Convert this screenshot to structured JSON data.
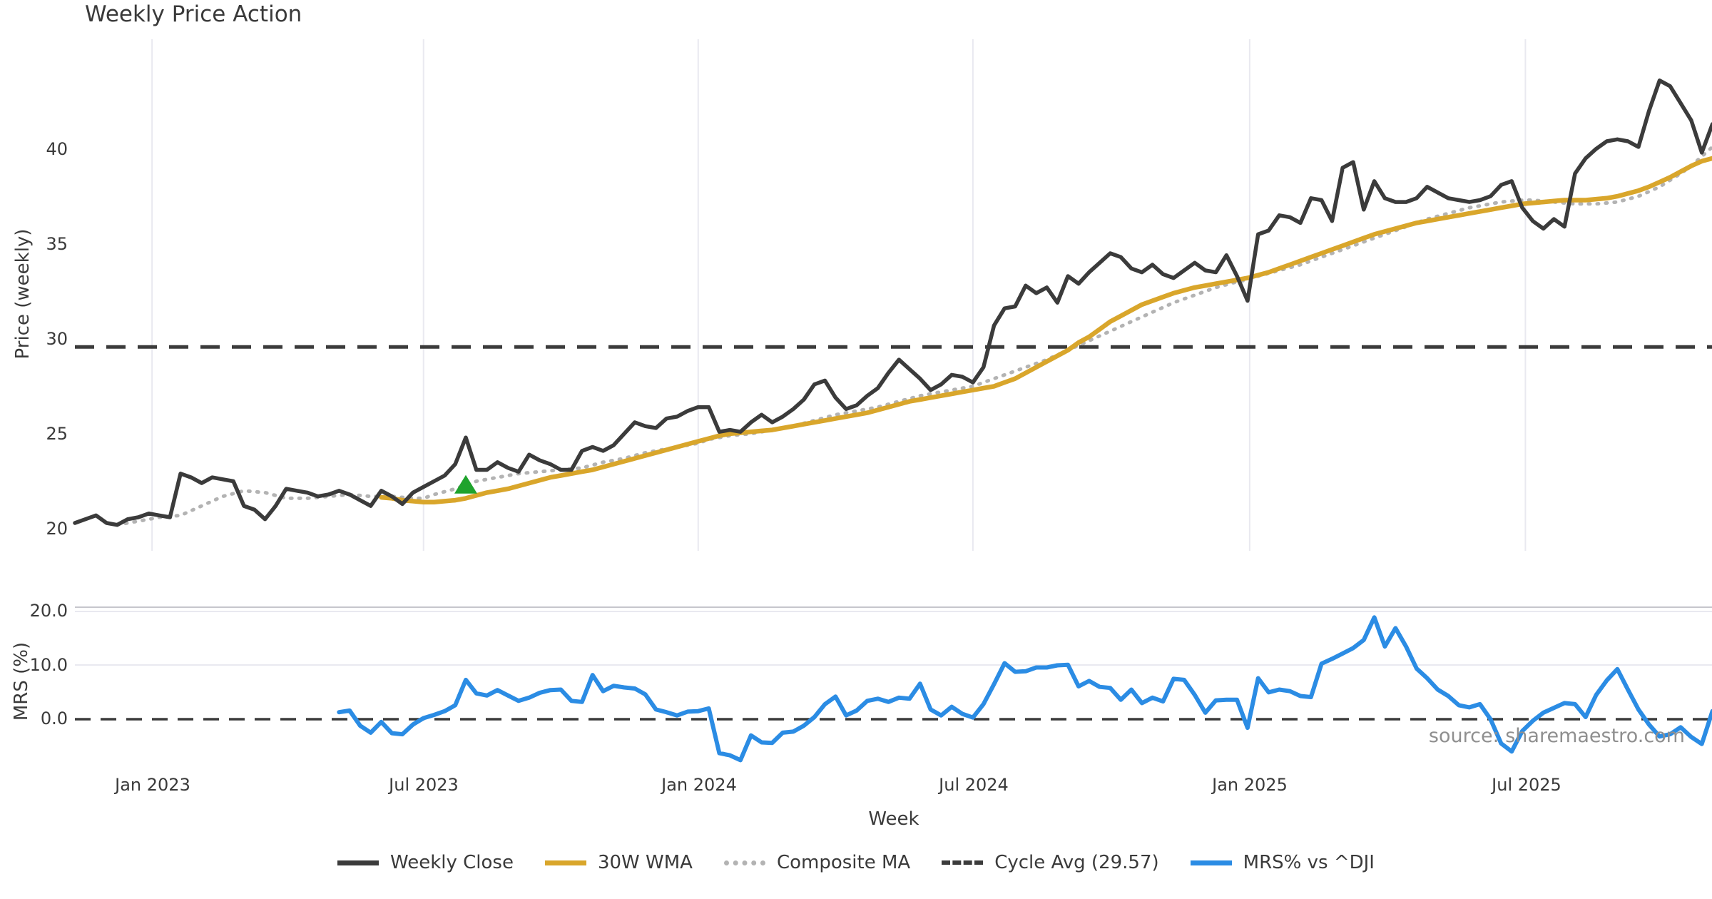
{
  "title": "Weekly Price Action",
  "source_note": "source: sharemaestro.com",
  "colors": {
    "weekly_close": "#3b3b3b",
    "wma_30w": "#d9a62b",
    "composite_ma": "#b3b3b3",
    "cycle_avg": "#3b3b3b",
    "mrs": "#2b8ce4",
    "buy_marker": "#1fa32d",
    "gridline": "#e9e9f0",
    "panel_spine": "#c6c6cc",
    "text": "#3a3a3a",
    "muted_text": "#8f8f8f"
  },
  "top_panel": {
    "ylabel": "Price (weekly)",
    "yticks": [
      {
        "label": "40",
        "value": 40
      },
      {
        "label": "35",
        "value": 35
      },
      {
        "label": "30",
        "value": 30
      },
      {
        "label": "25",
        "value": 25
      },
      {
        "label": "20",
        "value": 20
      }
    ],
    "cycle_avg_value": 29.57
  },
  "bottom_panel": {
    "ylabel": "MRS (%)",
    "yticks": [
      {
        "label": "20.0",
        "value": 20
      },
      {
        "label": "10.0",
        "value": 10
      },
      {
        "label": "0.0",
        "value": 0
      }
    ],
    "zero_line": 0
  },
  "x_axis": {
    "label": "Week",
    "ticks": [
      {
        "label": "Jan 2023",
        "week_index": 7.3
      },
      {
        "label": "Jul 2023",
        "week_index": 33.0
      },
      {
        "label": "Jan 2024",
        "week_index": 59.0
      },
      {
        "label": "Jul 2024",
        "week_index": 85.0
      },
      {
        "label": "Jan 2025",
        "week_index": 111.2
      },
      {
        "label": "Jul 2025",
        "week_index": 137.3
      }
    ]
  },
  "legend": {
    "items": [
      {
        "label": "Weekly Close",
        "style": "solid",
        "color": "#3b3b3b"
      },
      {
        "label": "30W WMA",
        "style": "solid",
        "color": "#d9a62b"
      },
      {
        "label": "Composite MA",
        "style": "dotted",
        "color": "#b3b3b3"
      },
      {
        "label": "Cycle Avg (29.57)",
        "style": "dashed",
        "color": "#3b3b3b"
      },
      {
        "label": "MRS% vs ^DJI",
        "style": "solid",
        "color": "#2b8ce4"
      }
    ]
  },
  "chart_data": [
    {
      "type": "line",
      "panel": "price",
      "title": "Weekly Price Action",
      "xlabel": "Week",
      "ylabel": "Price (weekly)",
      "x_unit": "week_index",
      "ylim": [
        19.3,
        45.8
      ],
      "grid": "vertical-only",
      "cycle_avg": 29.57,
      "buy_signal_marker": {
        "week_index": 37,
        "value": 22.3,
        "shape": "triangle-up",
        "color": "#1fa32d"
      },
      "series": [
        {
          "name": "Weekly Close",
          "start_index": 0,
          "values": [
            20.3,
            20.5,
            20.7,
            20.3,
            20.2,
            20.5,
            20.6,
            20.8,
            20.7,
            20.6,
            22.9,
            22.7,
            22.4,
            22.7,
            22.6,
            22.5,
            21.2,
            21.0,
            20.5,
            21.2,
            22.1,
            22.0,
            21.9,
            21.7,
            21.8,
            22.0,
            21.8,
            21.5,
            21.2,
            22.0,
            21.7,
            21.3,
            21.9,
            22.2,
            22.5,
            22.8,
            23.4,
            24.8,
            23.1,
            23.1,
            23.5,
            23.2,
            23.0,
            23.9,
            23.6,
            23.4,
            23.1,
            23.1,
            24.1,
            24.3,
            24.1,
            24.4,
            25.0,
            25.6,
            25.4,
            25.3,
            25.8,
            25.9,
            26.2,
            26.4,
            26.4,
            25.1,
            25.2,
            25.1,
            25.6,
            26.0,
            25.6,
            25.9,
            26.3,
            26.8,
            27.6,
            27.8,
            26.9,
            26.3,
            26.5,
            27.0,
            27.4,
            28.2,
            28.9,
            28.4,
            27.9,
            27.3,
            27.6,
            28.1,
            28.0,
            27.7,
            28.5,
            30.7,
            31.6,
            31.7,
            32.8,
            32.4,
            32.7,
            31.9,
            33.3,
            32.9,
            33.5,
            34.0,
            34.5,
            34.3,
            33.7,
            33.5,
            33.9,
            33.4,
            33.2,
            33.6,
            34.0,
            33.6,
            33.5,
            34.4,
            33.3,
            32.0,
            35.5,
            35.7,
            36.5,
            36.4,
            36.1,
            37.4,
            37.3,
            36.2,
            39.0,
            39.3,
            36.8,
            38.3,
            37.4,
            37.2,
            37.2,
            37.4,
            38.0,
            37.7,
            37.4,
            37.3,
            37.2,
            37.3,
            37.5,
            38.1,
            38.3,
            36.9,
            36.2,
            35.8,
            36.3,
            35.9,
            38.7,
            39.5,
            40.0,
            40.4,
            40.5,
            40.4,
            40.1,
            42.0,
            43.6,
            43.3,
            42.4,
            41.5,
            39.8,
            41.3
          ]
        },
        {
          "name": "30W WMA",
          "start_index": 29,
          "values": [
            21.65,
            21.6,
            21.5,
            21.45,
            21.4,
            21.4,
            21.45,
            21.5,
            21.6,
            21.75,
            21.9,
            22.0,
            22.1,
            22.25,
            22.4,
            22.55,
            22.7,
            22.8,
            22.9,
            23.0,
            23.1,
            23.25,
            23.4,
            23.55,
            23.7,
            23.85,
            24.0,
            24.15,
            24.3,
            24.45,
            24.6,
            24.75,
            24.9,
            25.0,
            25.05,
            25.1,
            25.15,
            25.2,
            25.3,
            25.4,
            25.5,
            25.6,
            25.7,
            25.8,
            25.9,
            26.0,
            26.1,
            26.25,
            26.4,
            26.55,
            26.7,
            26.8,
            26.9,
            27.0,
            27.1,
            27.2,
            27.3,
            27.4,
            27.5,
            27.7,
            27.9,
            28.2,
            28.5,
            28.8,
            29.1,
            29.4,
            29.8,
            30.1,
            30.5,
            30.9,
            31.2,
            31.5,
            31.8,
            32.0,
            32.2,
            32.4,
            32.55,
            32.7,
            32.8,
            32.9,
            33.0,
            33.1,
            33.2,
            33.35,
            33.5,
            33.7,
            33.9,
            34.1,
            34.3,
            34.5,
            34.7,
            34.9,
            35.1,
            35.3,
            35.5,
            35.65,
            35.8,
            35.95,
            36.1,
            36.2,
            36.3,
            36.4,
            36.5,
            36.6,
            36.7,
            36.8,
            36.9,
            37.0,
            37.1,
            37.15,
            37.2,
            37.25,
            37.3,
            37.3,
            37.3,
            37.35,
            37.4,
            37.5,
            37.65,
            37.8,
            38.0,
            38.25,
            38.5,
            38.8,
            39.1,
            39.35,
            39.5
          ]
        },
        {
          "name": "Composite MA",
          "start_index": 4,
          "values": [
            20.2,
            20.3,
            20.4,
            20.5,
            20.6,
            20.65,
            20.7,
            20.95,
            21.2,
            21.45,
            21.7,
            21.85,
            22.0,
            21.95,
            21.9,
            21.75,
            21.6,
            21.6,
            21.6,
            21.65,
            21.7,
            21.75,
            21.8,
            21.75,
            21.7,
            21.7,
            21.7,
            21.65,
            21.6,
            21.6,
            21.8,
            21.95,
            22.1,
            22.3,
            22.5,
            22.6,
            22.7,
            22.8,
            22.9,
            22.95,
            23.0,
            23.05,
            23.1,
            23.15,
            23.2,
            23.35,
            23.5,
            23.6,
            23.7,
            23.85,
            24.0,
            24.1,
            24.2,
            24.3,
            24.4,
            24.5,
            24.7,
            24.8,
            24.9,
            24.95,
            25.0,
            25.1,
            25.2,
            25.3,
            25.4,
            25.55,
            25.7,
            25.85,
            26.0,
            26.1,
            26.2,
            26.3,
            26.4,
            26.55,
            26.7,
            26.85,
            27.0,
            27.1,
            27.2,
            27.3,
            27.4,
            27.5,
            27.7,
            27.9,
            28.1,
            28.3,
            28.5,
            28.7,
            28.9,
            29.15,
            29.4,
            29.65,
            29.9,
            30.15,
            30.4,
            30.65,
            30.9,
            31.15,
            31.4,
            31.65,
            31.9,
            32.1,
            32.3,
            32.5,
            32.7,
            32.85,
            33.0,
            33.1,
            33.3,
            33.45,
            33.6,
            33.75,
            33.9,
            34.1,
            34.3,
            34.5,
            34.7,
            34.9,
            35.1,
            35.3,
            35.5,
            35.7,
            35.9,
            36.1,
            36.3,
            36.45,
            36.6,
            36.75,
            36.9,
            37.0,
            37.1,
            37.2,
            37.25,
            37.3,
            37.3,
            37.25,
            37.2,
            37.15,
            37.1,
            37.1,
            37.1,
            37.15,
            37.2,
            37.35,
            37.5,
            37.75,
            38.0,
            38.35,
            38.7,
            39.1,
            39.6,
            40.1
          ]
        }
      ]
    },
    {
      "type": "line",
      "panel": "mrs",
      "xlabel": "Week",
      "ylabel": "MRS (%)",
      "x_unit": "week_index",
      "ylim": [
        -8.5,
        21.3
      ],
      "zero_line_dashed": true,
      "series": [
        {
          "name": "MRS% vs ^DJI",
          "start_index": 25,
          "values": [
            1.3,
            1.6,
            -1.2,
            -2.5,
            -0.5,
            -2.6,
            -2.8,
            -1.0,
            0.2,
            0.8,
            1.5,
            2.6,
            7.3,
            4.8,
            4.4,
            5.4,
            4.4,
            3.4,
            4.0,
            4.9,
            5.4,
            5.5,
            3.4,
            3.2,
            8.2,
            5.2,
            6.2,
            5.9,
            5.7,
            4.6,
            1.8,
            1.3,
            0.7,
            1.4,
            1.5,
            2.0,
            -6.3,
            -6.7,
            -7.6,
            -3.0,
            -4.3,
            -4.4,
            -2.5,
            -2.3,
            -1.2,
            0.4,
            2.8,
            4.2,
            0.7,
            1.6,
            3.4,
            3.8,
            3.2,
            4.0,
            3.8,
            6.6,
            1.8,
            0.7,
            2.3,
            1.0,
            0.3,
            2.8,
            6.5,
            10.4,
            8.8,
            8.9,
            9.6,
            9.6,
            10.0,
            10.1,
            6.1,
            7.1,
            6.0,
            5.8,
            3.6,
            5.5,
            3.0,
            4.0,
            3.3,
            7.5,
            7.3,
            4.5,
            1.2,
            3.5,
            3.6,
            3.6,
            -1.6,
            7.6,
            5.0,
            5.5,
            5.2,
            4.3,
            4.1,
            10.3,
            11.2,
            12.2,
            13.2,
            14.7,
            18.9,
            13.5,
            16.9,
            13.5,
            9.4,
            7.6,
            5.5,
            4.3,
            2.6,
            2.2,
            2.8,
            0.0,
            -4.5,
            -6.0,
            -2.2,
            -0.3,
            1.2,
            2.1,
            3.0,
            2.8,
            0.4,
            4.5,
            7.2,
            9.3,
            5.5,
            1.8,
            -1.0,
            -3.2,
            -2.8,
            -1.5,
            -3.3,
            -4.6,
            1.5
          ]
        }
      ]
    }
  ]
}
